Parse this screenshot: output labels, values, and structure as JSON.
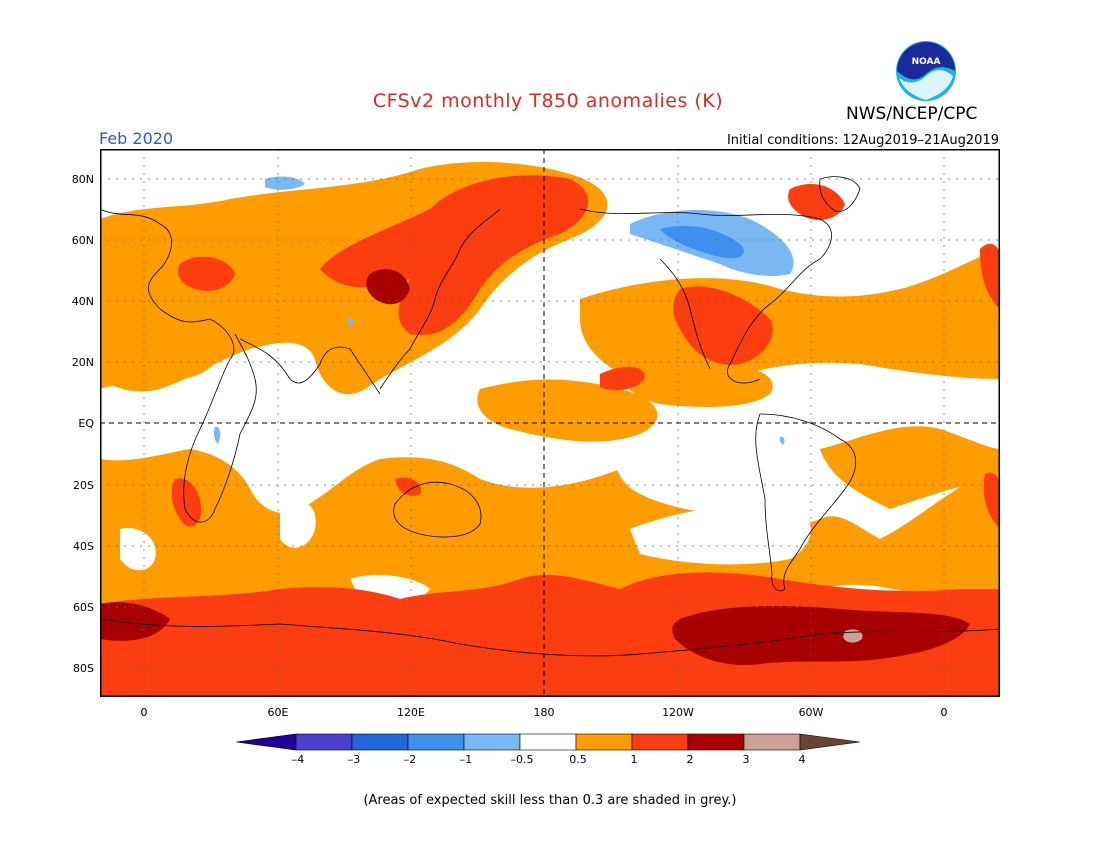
{
  "header": {
    "title": "CFSv2 monthly T850 anomalies (K)",
    "agency": "NWS/NCEP/CPC",
    "logo_text": "NOAA",
    "valid_month": "Feb 2020",
    "initial_conditions": "Initial conditions: 12Aug2019–21Aug2019"
  },
  "map": {
    "projection": "cylindrical equidistant",
    "lat_labels": [
      "80N",
      "60N",
      "40N",
      "20N",
      "EQ",
      "20S",
      "40S",
      "60S",
      "80S"
    ],
    "lon_labels": [
      "0",
      "60E",
      "120E",
      "180",
      "120W",
      "60W",
      "0"
    ],
    "grid": "dotted",
    "reference_lines": [
      "EQ",
      "180"
    ]
  },
  "legend": {
    "tick_labels": [
      "–4",
      "–3",
      "–2",
      "–1",
      "–0.5",
      "0.5",
      "1",
      "2",
      "3",
      "4"
    ],
    "colors": [
      "#220099",
      "#4a3fd0",
      "#2266dd",
      "#3f8fee",
      "#79b8f5",
      "#ffffff",
      "#ff9d00",
      "#fb3d10",
      "#a80000",
      "#c9a196",
      "#6e4336"
    ]
  },
  "footnote": "(Areas of expected skill less than 0.3 are shaded in grey.)"
}
